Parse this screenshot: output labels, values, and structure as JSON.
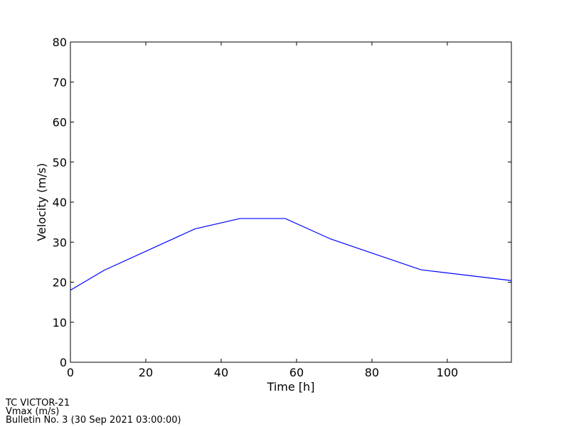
{
  "chart_data": {
    "type": "line",
    "x_label": "Time [h]",
    "y_label": "Velocity (m/s)",
    "x": [
      0,
      9,
      33,
      45,
      57,
      69,
      93,
      117
    ],
    "series": [
      {
        "color": "#0000ff",
        "values": [
          18,
          23,
          33.3,
          35.9,
          35.9,
          30.8,
          23.1,
          20.4
        ]
      }
    ],
    "xlim": [
      0,
      117
    ],
    "ylim": [
      0,
      80
    ],
    "xticks": [
      0,
      20,
      40,
      60,
      80,
      100
    ],
    "yticks": [
      0,
      10,
      20,
      30,
      40,
      50,
      60,
      70,
      80
    ],
    "annotations": [
      "TC VICTOR-21",
      "Vmax (m/s)",
      "Bulletin No. 3 (30 Sep 2021  03:00:00)"
    ]
  }
}
